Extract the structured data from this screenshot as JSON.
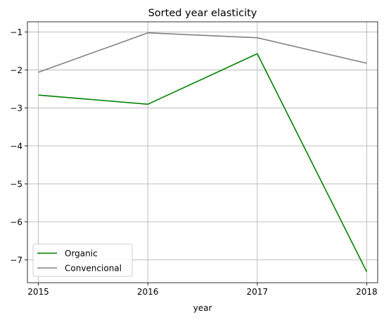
{
  "chart_data": {
    "type": "line",
    "title": "Sorted year elasticity",
    "xlabel": "year",
    "ylabel": "",
    "x": [
      2015,
      2016,
      2017,
      2018
    ],
    "x_tick_labels": [
      "2015",
      "2016",
      "2017",
      "2018"
    ],
    "y_ticks": [
      -1,
      -2,
      -3,
      -4,
      -5,
      -6,
      -7
    ],
    "y_tick_labels": [
      "−1",
      "−2",
      "−3",
      "−4",
      "−5",
      "−6",
      "−7"
    ],
    "ylim": [
      -7.6,
      -0.73
    ],
    "xlim": [
      2014.9,
      2018.1
    ],
    "grid": true,
    "legend_position": "lower-left",
    "series": [
      {
        "name": "Organic",
        "color": "#008000",
        "values": [
          -2.66,
          -2.9,
          -1.57,
          -7.31
        ]
      },
      {
        "name": "Convencional",
        "color": "#808080",
        "values": [
          -2.06,
          -1.02,
          -1.15,
          -1.82
        ]
      }
    ]
  }
}
